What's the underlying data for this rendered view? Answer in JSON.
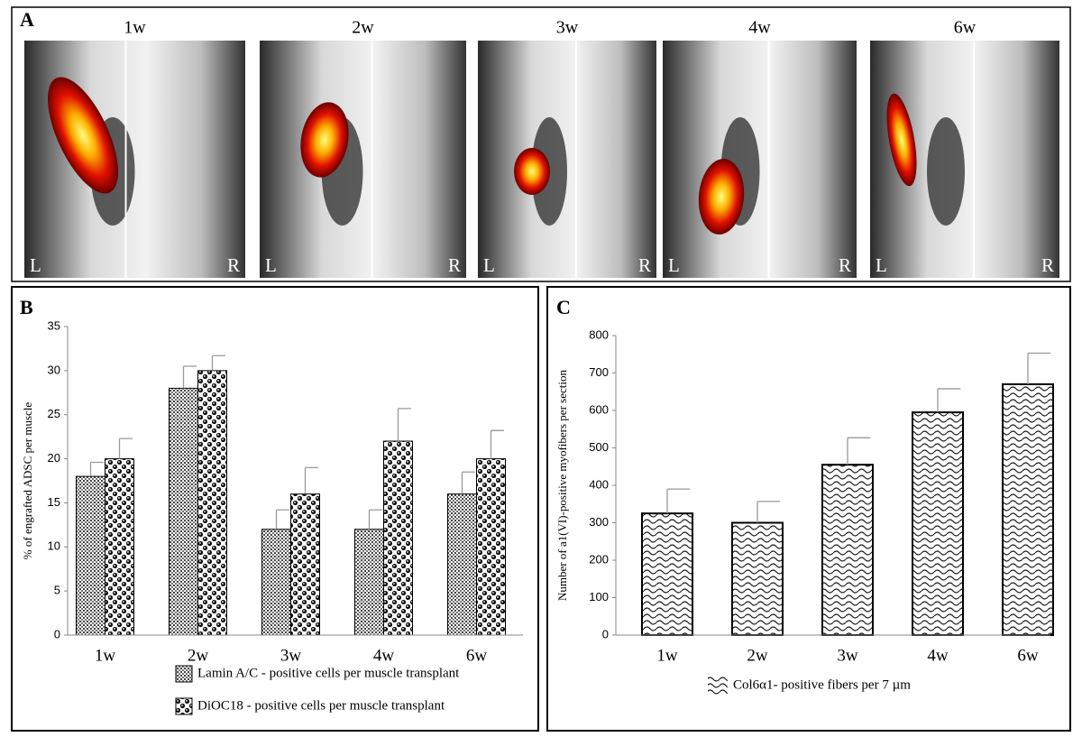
{
  "panel_a": {
    "label": "A",
    "images": [
      {
        "title": "1w",
        "left": "L",
        "right": "R"
      },
      {
        "title": "2w",
        "left": "L",
        "right": "R"
      },
      {
        "title": "3w",
        "left": "L",
        "right": "R"
      },
      {
        "title": "4w",
        "left": "L",
        "right": "R"
      },
      {
        "title": "6w",
        "left": "L",
        "right": "R"
      }
    ]
  },
  "chart_data": [
    {
      "type": "bar",
      "panel_label": "B",
      "ylabel": "% of engrafted ADSC per muscle",
      "categories": [
        "1w",
        "2w",
        "3w",
        "4w",
        "6w"
      ],
      "series": [
        {
          "name": "Lamin A/C - positive cells per muscle transplant",
          "values": [
            18,
            28,
            12,
            12,
            16
          ],
          "errors": [
            1.6,
            2.5,
            2.2,
            2.2,
            2.5
          ]
        },
        {
          "name": "DiOC18 - positive cells per muscle transplant",
          "values": [
            20,
            30,
            16,
            22,
            20
          ],
          "errors": [
            2.3,
            1.7,
            3,
            3.7,
            3.2
          ]
        }
      ],
      "ylim": [
        0,
        35
      ],
      "yticks": [
        0,
        5,
        10,
        15,
        20,
        25,
        30,
        35
      ]
    },
    {
      "type": "bar",
      "panel_label": "C",
      "ylabel": "Number  of a1(VI)-positive myofibers per section",
      "categories": [
        "1w",
        "2w",
        "3w",
        "4w",
        "6w"
      ],
      "series": [
        {
          "name": "Col6α1- positive fibers per 7 µm",
          "values": [
            325,
            300,
            455,
            595,
            670
          ],
          "errors": [
            65,
            57,
            72,
            63,
            83
          ]
        }
      ],
      "ylim": [
        0,
        800
      ],
      "yticks": [
        0,
        100,
        200,
        300,
        400,
        500,
        600,
        700,
        800
      ]
    }
  ]
}
